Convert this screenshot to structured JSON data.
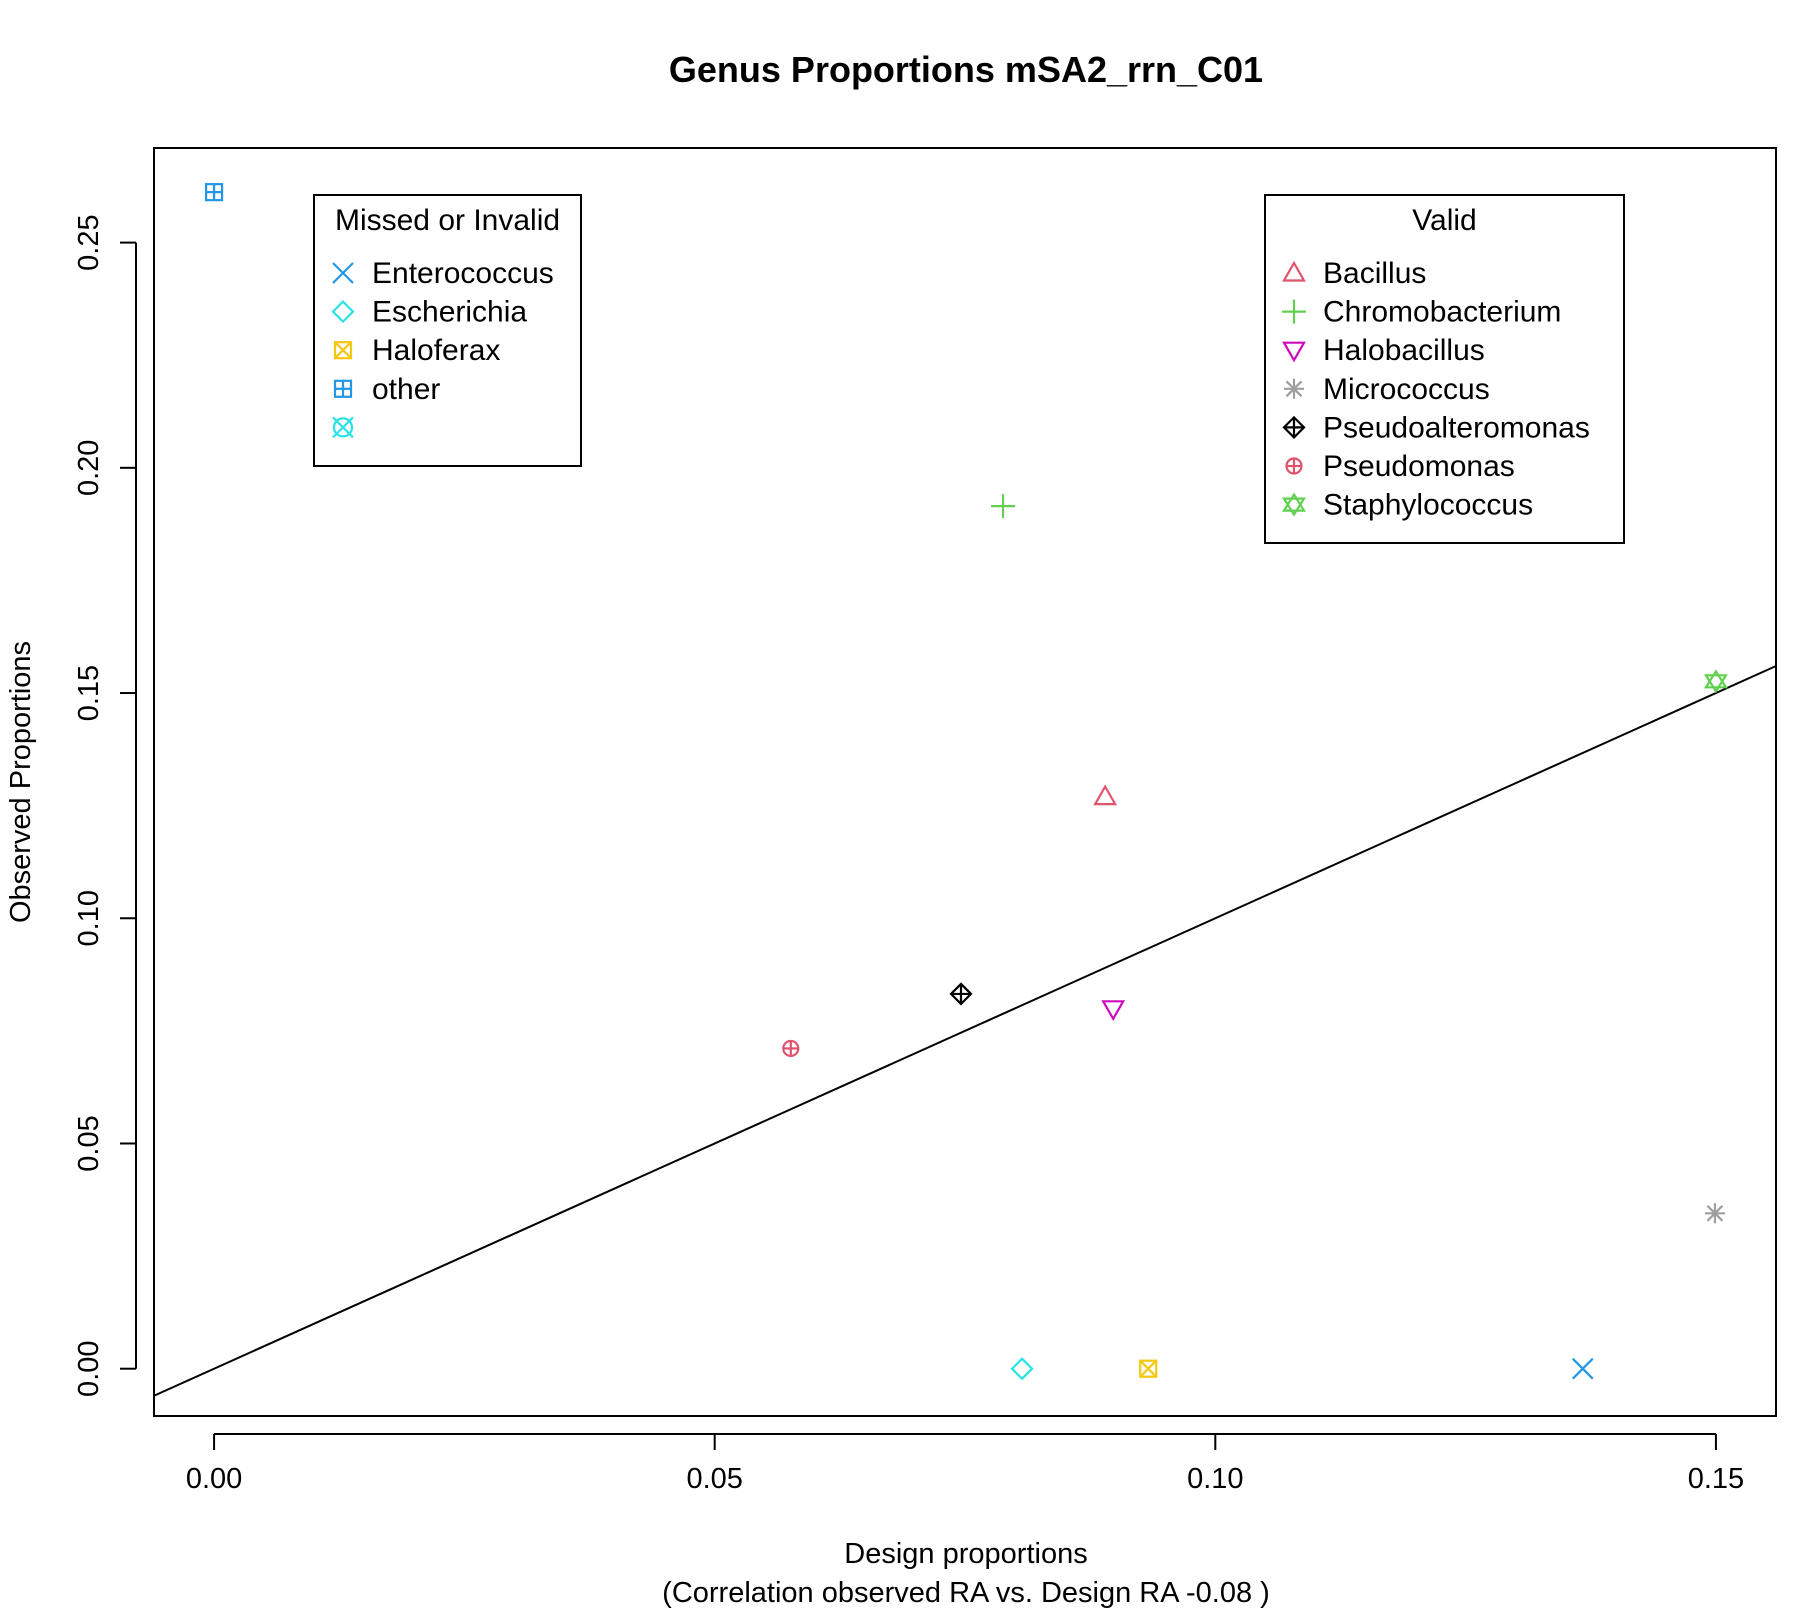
{
  "chart_data": {
    "type": "scatter",
    "title": "Genus Proportions mSA2_rrn_C01",
    "xlabel": "Design proportions",
    "xlabel_sub": "(Correlation observed RA vs. Design RA  -0.08 )",
    "ylabel": "Observed Proportions",
    "xlim": [
      -0.006,
      0.156
    ],
    "ylim": [
      -0.0105,
      0.271
    ],
    "x_ticks": [
      0.0,
      0.05,
      0.1,
      0.15
    ],
    "x_tick_labels": [
      "0.00",
      "0.05",
      "0.10",
      "0.15"
    ],
    "y_ticks": [
      0.0,
      0.05,
      0.1,
      0.15,
      0.2,
      0.25
    ],
    "y_tick_labels": [
      "0.00",
      "0.05",
      "0.10",
      "0.15",
      "0.20",
      "0.25"
    ],
    "grid": false,
    "reference_line": {
      "intercept": 0,
      "slope": 1
    },
    "series": [
      {
        "name": "Bacillus",
        "group": "valid",
        "marker": "triangle-up",
        "color": "#DF536B",
        "x": 0.089,
        "y": 0.127
      },
      {
        "name": "Chromobacterium",
        "group": "valid",
        "marker": "plus",
        "color": "#61D04F",
        "x": 0.0788,
        "y": 0.1915
      },
      {
        "name": "Halobacillus",
        "group": "valid",
        "marker": "triangle-down",
        "color": "#CD0BBC",
        "x": 0.0898,
        "y": 0.0799
      },
      {
        "name": "Micrococcus",
        "group": "valid",
        "marker": "asterisk",
        "color": "#9E9E9E",
        "x": 0.1499,
        "y": 0.0345
      },
      {
        "name": "Pseudoalteromonas",
        "group": "valid",
        "marker": "diamond-plus",
        "color": "#000000",
        "x": 0.0746,
        "y": 0.0832
      },
      {
        "name": "Pseudomonas",
        "group": "valid",
        "marker": "circle-plus",
        "color": "#DF536B",
        "x": 0.0576,
        "y": 0.0711
      },
      {
        "name": "Staphylococcus",
        "group": "valid",
        "marker": "star-of-david",
        "color": "#61D04F",
        "x": 0.15,
        "y": 0.1526
      },
      {
        "name": "Enterococcus",
        "group": "missed",
        "marker": "cross",
        "color": "#2297E6",
        "x": 0.1367,
        "y": 0.0
      },
      {
        "name": "Escherichia",
        "group": "missed",
        "marker": "diamond",
        "color": "#28E2E5",
        "x": 0.0807,
        "y": 0.0
      },
      {
        "name": "Haloferax",
        "group": "missed",
        "marker": "square-x",
        "color": "#F5C710",
        "x": 0.0933,
        "y": 0.0
      },
      {
        "name": "other",
        "group": "missed",
        "marker": "square-plus",
        "color": "#2297E6",
        "x": 0.0,
        "y": 0.2612
      }
    ],
    "legends": [
      {
        "title": "Missed or Invalid",
        "placement": "top-left",
        "entries": [
          {
            "label": "Enterococcus",
            "marker": "cross",
            "color": "#2297E6"
          },
          {
            "label": "Escherichia",
            "marker": "diamond",
            "color": "#28E2E5"
          },
          {
            "label": "Haloferax",
            "marker": "square-x",
            "color": "#F5C710"
          },
          {
            "label": "other",
            "marker": "square-plus",
            "color": "#2297E6"
          },
          {
            "label": "",
            "marker": "circle-x",
            "color": "#28E2E5"
          }
        ]
      },
      {
        "title": "Valid",
        "placement": "top-right",
        "entries": [
          {
            "label": "Bacillus",
            "marker": "triangle-up",
            "color": "#DF536B"
          },
          {
            "label": "Chromobacterium",
            "marker": "plus",
            "color": "#61D04F"
          },
          {
            "label": "Halobacillus",
            "marker": "triangle-down",
            "color": "#CD0BBC"
          },
          {
            "label": "Micrococcus",
            "marker": "asterisk",
            "color": "#9E9E9E"
          },
          {
            "label": "Pseudoalteromonas",
            "marker": "diamond-plus",
            "color": "#000000"
          },
          {
            "label": "Pseudomonas",
            "marker": "circle-plus",
            "color": "#DF536B"
          },
          {
            "label": "Staphylococcus",
            "marker": "star-of-david",
            "color": "#61D04F"
          }
        ]
      }
    ]
  }
}
